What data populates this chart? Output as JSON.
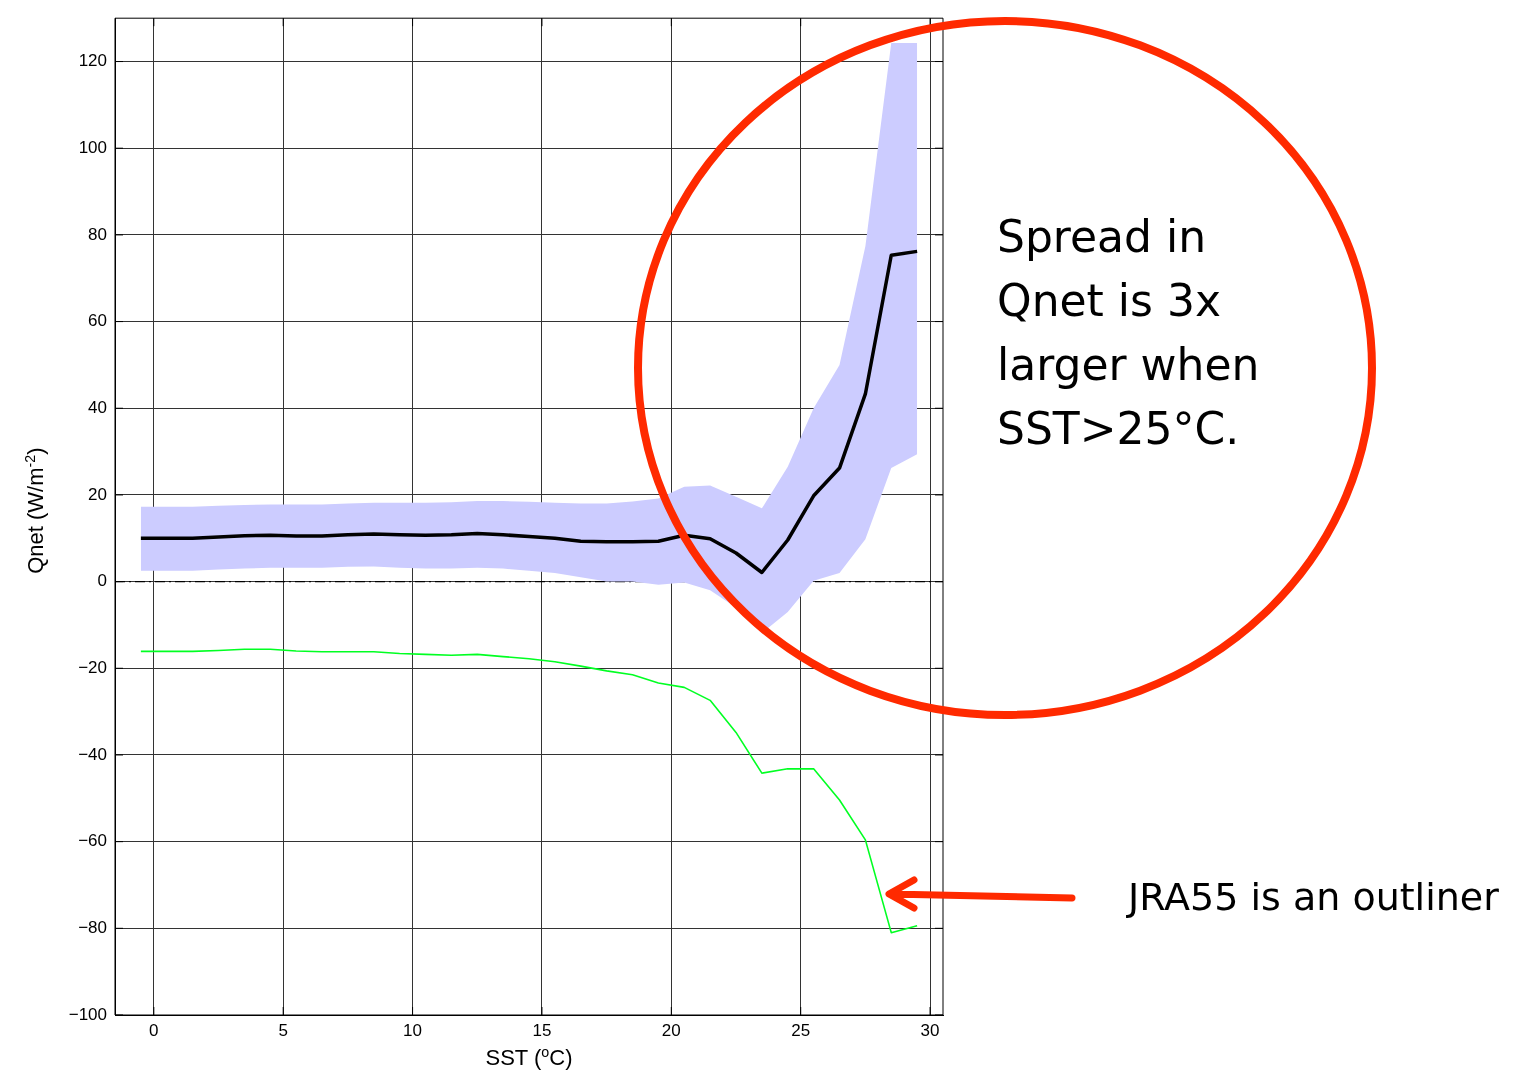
{
  "chart_data": {
    "type": "line",
    "xlabel": "SST ($^{o}$C)",
    "ylabel": "Qnet (W/m$^{-2}$)",
    "x": [
      -0.5,
      0.5,
      1.5,
      2.5,
      3.5,
      4.5,
      5.5,
      6.5,
      7.5,
      8.5,
      9.5,
      10.5,
      11.5,
      12.5,
      13.5,
      14.5,
      15.5,
      16.5,
      17.5,
      18.5,
      19.5,
      20.5,
      21.5,
      22.5,
      23.5,
      24.5,
      25.5,
      26.5,
      27.5,
      28.5,
      29.5
    ],
    "series": [
      {
        "color": "#000000",
        "values": [
          10,
          10,
          10,
          10.3,
          10.6,
          10.7,
          10.5,
          10.5,
          10.8,
          11,
          10.8,
          10.7,
          10.8,
          11.1,
          10.8,
          10.4,
          10,
          9.3,
          9.2,
          9.2,
          9.3,
          10.7,
          9.9,
          6.6,
          2.1,
          9.6,
          19.8,
          26.2,
          43.3,
          75.3,
          76.2
        ],
        "lower": [
          2.5,
          2.5,
          2.5,
          2.8,
          3,
          3.2,
          3.2,
          3.2,
          3.4,
          3.5,
          3.2,
          3,
          3,
          3.2,
          3,
          2.5,
          2,
          1,
          0,
          0,
          -0.7,
          -0.2,
          -2,
          -6,
          -11.9,
          -7,
          0.2,
          2,
          9.8,
          26.2,
          29.4
        ],
        "upper": [
          17.3,
          17.3,
          17.3,
          17.5,
          17.7,
          17.8,
          17.8,
          17.8,
          18,
          18.2,
          18.2,
          18.2,
          18.3,
          18.6,
          18.6,
          18.4,
          18.2,
          18,
          18,
          18.5,
          19.2,
          21.9,
          22.2,
          19.6,
          16.9,
          26.5,
          40,
          50,
          77.4,
          124.3,
          124.3
        ]
      },
      {
        "color": "#00ff22",
        "values": [
          -16.1,
          -16.1,
          -16.1,
          -15.9,
          -15.6,
          -15.6,
          -16,
          -16.2,
          -16.2,
          -16.2,
          -16.6,
          -16.8,
          -17,
          -16.8,
          -17.3,
          -17.8,
          -18.5,
          -19.5,
          -20.6,
          -21.5,
          -23.4,
          -24.4,
          -27.4,
          -34.8,
          -44.2,
          -43.2,
          -43.2,
          -50.4,
          -59.6,
          -81,
          -79.4
        ]
      }
    ],
    "xlim": [
      -1.5,
      30.5
    ],
    "xticks": [
      0,
      5,
      10,
      15,
      20,
      25,
      30
    ],
    "ylim": [
      -100,
      130
    ],
    "yticks": [
      -100,
      -80,
      -60,
      -40,
      -20,
      0,
      20,
      40,
      60,
      80,
      100,
      120
    ],
    "ref_lines": [
      {
        "axis": "y",
        "value": 0,
        "color": "#000000",
        "line_style": "dashed"
      }
    ],
    "grid": true,
    "legend": false,
    "marker": "none",
    "line_style": "solid",
    "annotations": [
      "Spread in Qnet is 3x larger when SST>25°C.",
      "JRA55 is an outliner"
    ]
  }
}
